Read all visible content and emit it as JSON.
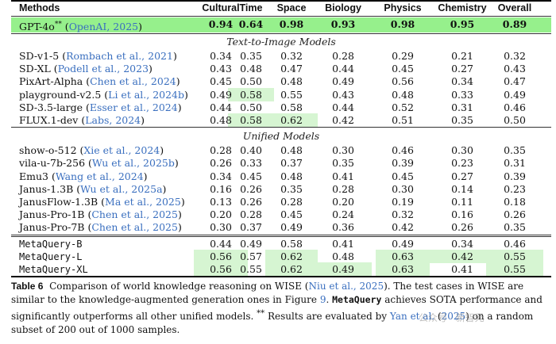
{
  "table": {
    "columns": [
      "Methods",
      "Cultural",
      "Time",
      "Space",
      "Biology",
      "Physics",
      "Chemistry",
      "Overall"
    ],
    "highlight_row": {
      "name": "GPT-4o",
      "sup": "**",
      "cite": "OpenAI",
      "cite_year": "2025",
      "values": [
        "0.94",
        "0.64",
        "0.98",
        "0.93",
        "0.98",
        "0.95",
        "0.89"
      ]
    },
    "sections": [
      {
        "title": "Text-to-Image Models",
        "rows": [
          {
            "name": "SD-v1-5",
            "cite": "Rombach et al.",
            "year": "2021",
            "values": [
              "0.34",
              "0.35",
              "0.32",
              "0.28",
              "0.29",
              "0.21",
              "0.32"
            ],
            "hl": []
          },
          {
            "name": "SD-XL",
            "cite": "Podell et al.",
            "year": "2023",
            "values": [
              "0.43",
              "0.48",
              "0.47",
              "0.44",
              "0.45",
              "0.27",
              "0.43"
            ],
            "hl": []
          },
          {
            "name": "PixArt-Alpha",
            "cite": "Chen et al.",
            "year": "2024",
            "values": [
              "0.45",
              "0.50",
              "0.48",
              "0.49",
              "0.56",
              "0.34",
              "0.47"
            ],
            "hl": []
          },
          {
            "name": "playground-v2.5",
            "cite": "Li et al.",
            "year": "2024b",
            "values": [
              "0.49",
              "0.58",
              "0.55",
              "0.43",
              "0.48",
              "0.33",
              "0.49"
            ],
            "hl": [
              1
            ]
          },
          {
            "name": "SD-3.5-large",
            "cite": "Esser et al.",
            "year": "2024",
            "values": [
              "0.44",
              "0.50",
              "0.58",
              "0.44",
              "0.52",
              "0.31",
              "0.46"
            ],
            "hl": []
          },
          {
            "name": "FLUX.1-dev",
            "cite": "Labs",
            "year": "2024",
            "values": [
              "0.48",
              "0.58",
              "0.62",
              "0.42",
              "0.51",
              "0.35",
              "0.50"
            ],
            "hl": [
              1,
              2
            ]
          }
        ]
      },
      {
        "title": "Unified Models",
        "rows": [
          {
            "name": "show-o-512",
            "cite": "Xie et al.",
            "year": "2024",
            "values": [
              "0.28",
              "0.40",
              "0.48",
              "0.30",
              "0.46",
              "0.30",
              "0.35"
            ],
            "hl": []
          },
          {
            "name": "vila-u-7b-256",
            "cite": "Wu et al.",
            "year": "2025b",
            "values": [
              "0.26",
              "0.33",
              "0.37",
              "0.35",
              "0.39",
              "0.23",
              "0.31"
            ],
            "hl": []
          },
          {
            "name": "Emu3",
            "cite": "Wang et al.",
            "year": "2024",
            "values": [
              "0.34",
              "0.45",
              "0.48",
              "0.41",
              "0.45",
              "0.27",
              "0.39"
            ],
            "hl": []
          },
          {
            "name": "Janus-1.3B",
            "cite": "Wu et al.",
            "year": "2025a",
            "values": [
              "0.16",
              "0.26",
              "0.35",
              "0.28",
              "0.30",
              "0.14",
              "0.23"
            ],
            "hl": []
          },
          {
            "name": "JanusFlow-1.3B",
            "cite": "Ma et al.",
            "year": "2025",
            "values": [
              "0.13",
              "0.26",
              "0.28",
              "0.20",
              "0.19",
              "0.11",
              "0.18"
            ],
            "hl": []
          },
          {
            "name": "Janus-Pro-1B",
            "cite": "Chen et al.",
            "year": "2025",
            "values": [
              "0.20",
              "0.28",
              "0.45",
              "0.24",
              "0.32",
              "0.16",
              "0.26"
            ],
            "hl": []
          },
          {
            "name": "Janus-Pro-7B",
            "cite": "Chen et al.",
            "year": "2025",
            "values": [
              "0.30",
              "0.37",
              "0.49",
              "0.36",
              "0.42",
              "0.26",
              "0.35"
            ],
            "hl": []
          }
        ]
      }
    ],
    "ours": [
      {
        "name": "MetaQuery-B",
        "values": [
          "0.44",
          "0.49",
          "0.58",
          "0.41",
          "0.49",
          "0.34",
          "0.46"
        ],
        "hl": []
      },
      {
        "name": "MetaQuery-L",
        "values": [
          "0.56",
          "0.57",
          "0.62",
          "0.48",
          "0.63",
          "0.42",
          "0.55"
        ],
        "hl": [
          0,
          2,
          4,
          5,
          6
        ]
      },
      {
        "name": "MetaQuery-XL",
        "values": [
          "0.56",
          "0.55",
          "0.62",
          "0.49",
          "0.63",
          "0.41",
          "0.55"
        ],
        "hl": [
          0,
          2,
          3,
          4,
          6
        ]
      }
    ]
  },
  "caption": {
    "label": "Table 6",
    "t1": "Comparison of world knowledge reasoning on WISE (",
    "c1": "Niu et al., 2025",
    "t2": "). The test cases in WISE are similar to the knowledge-augmented generation ones in Figure ",
    "c2": "9",
    "t3": ". ",
    "mq": "MetaQuery",
    "t4": " achieves SOTA performance and significantly outperforms all other unified models. ",
    "stars": "**",
    "t5": " Results are evaluated by ",
    "c3": "Yan et al.",
    "t6": " (",
    "c4": "2025",
    "t7": ") on a random subset of 200 out of 1000 samples."
  },
  "watermark": "公众号 · 新智元"
}
